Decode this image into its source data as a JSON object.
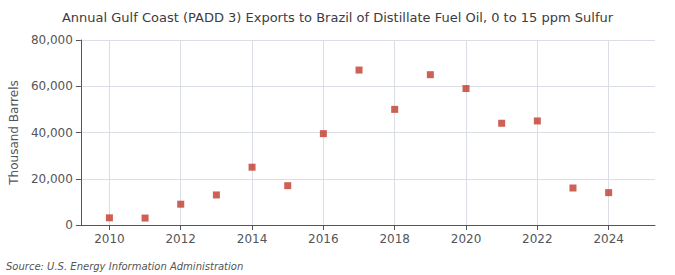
{
  "chart_data": {
    "type": "scatter",
    "title": "Annual Gulf Coast (PADD 3) Exports to Brazil of Distillate Fuel Oil, 0 to 15 ppm Sulfur",
    "ylabel": "Thousand Barrels",
    "annotations": [
      "Source: U.S. Energy Information Administration"
    ],
    "x": [
      2010,
      2011,
      2012,
      2013,
      2014,
      2015,
      2016,
      2017,
      2018,
      2019,
      2020,
      2021,
      2022,
      2023,
      2024
    ],
    "values": [
      3100,
      3000,
      9000,
      13000,
      25000,
      17000,
      39500,
      67000,
      50000,
      65000,
      59000,
      44000,
      45000,
      16000,
      14000
    ],
    "color": "#c0392b",
    "marker": "square",
    "xlim": [
      2009.2,
      2025.3
    ],
    "xticks": [
      2010,
      2012,
      2014,
      2016,
      2018,
      2020,
      2022,
      2024
    ],
    "ylim": [
      0,
      80000
    ],
    "yticks": [
      0,
      {
        "value": 20000,
        "label": "20,000"
      },
      {
        "value": 40000,
        "label": "40,000"
      },
      {
        "value": 60000,
        "label": "60,000"
      },
      {
        "value": 80000,
        "label": "80,000"
      }
    ],
    "grid": true
  }
}
